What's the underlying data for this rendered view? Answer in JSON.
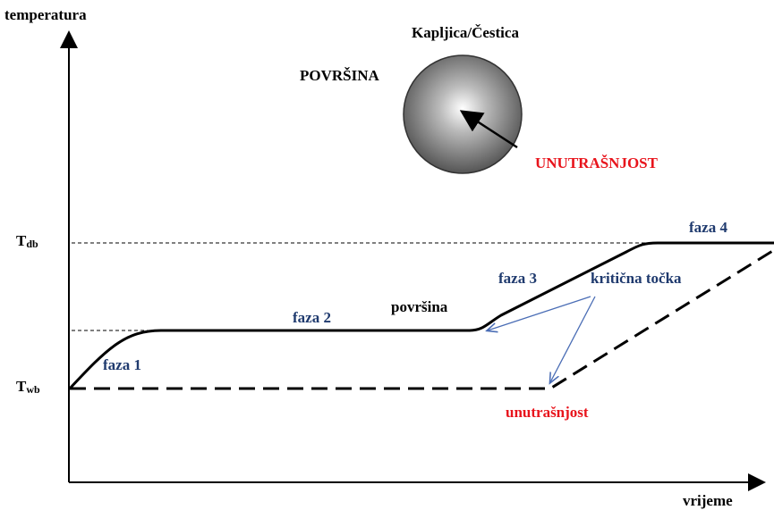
{
  "axes": {
    "y_label": "temperatura",
    "x_label": "vrijeme"
  },
  "particle": {
    "title": "Kapljica/Čestica",
    "surface_label": "POVRŠINA",
    "interior_label": "UNUTRAŠNJOST"
  },
  "levels": {
    "dry_bulb": {
      "symbol": "T",
      "subscript": "db"
    },
    "wet_bulb": {
      "symbol": "T",
      "subscript": "wb"
    }
  },
  "phases": [
    "faza 1",
    "faza 2",
    "faza 3",
    "faza 4"
  ],
  "curves": {
    "surface": "površina",
    "interior": "unutrašnjost",
    "critical_point": "kritična točka"
  }
}
